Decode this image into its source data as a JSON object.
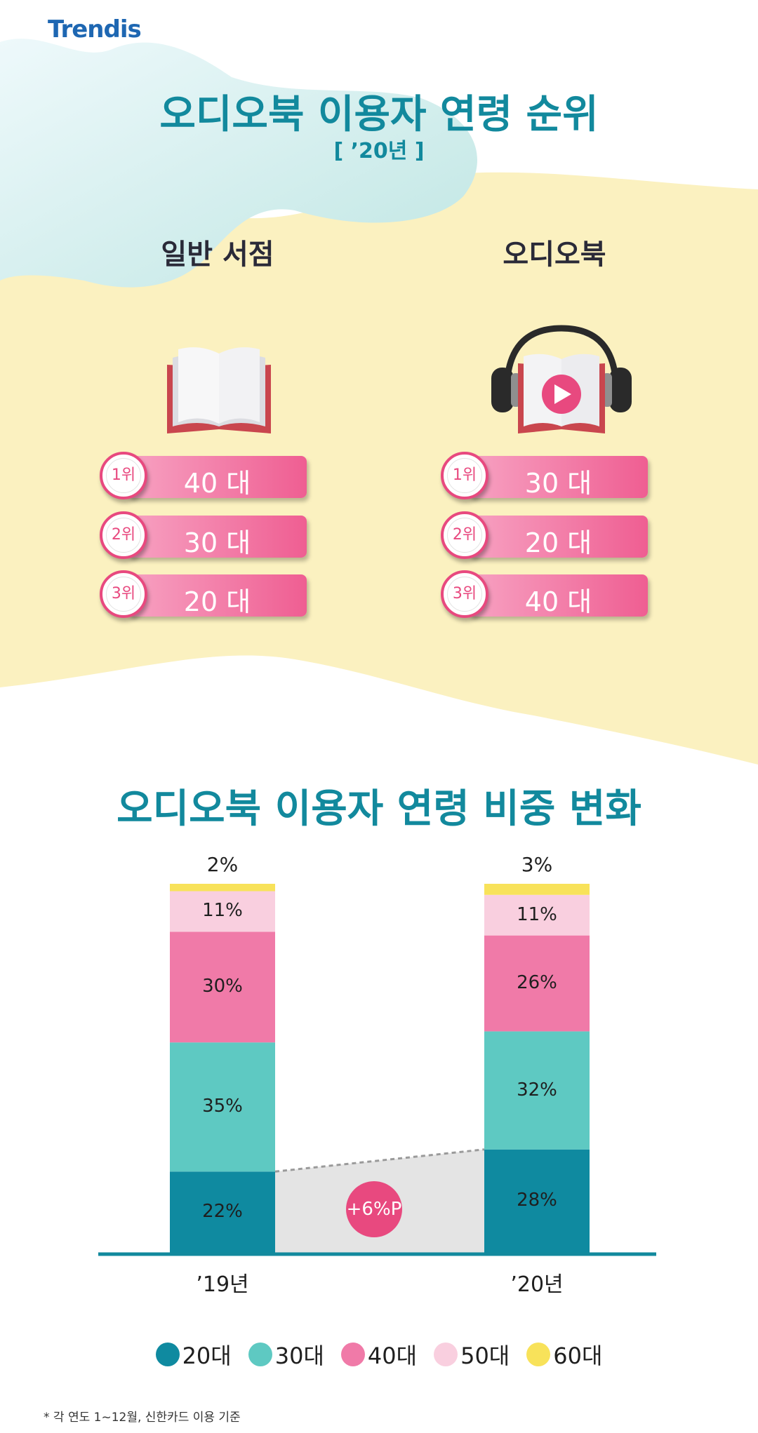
{
  "brand": "Trendis",
  "header": {
    "title": "오디오북 이용자 연령 순위",
    "subtitle": "[ ’20년 ]"
  },
  "ranking": {
    "left": {
      "title": "일반 서점",
      "icon": "book-icon",
      "items": [
        {
          "rank": "1위",
          "value": "40 대"
        },
        {
          "rank": "2위",
          "value": "30 대"
        },
        {
          "rank": "3위",
          "value": "20 대"
        }
      ]
    },
    "right": {
      "title": "오디오북",
      "icon": "audiobook-headphones-icon",
      "items": [
        {
          "rank": "1위",
          "value": "30 대"
        },
        {
          "rank": "2위",
          "value": "20 대"
        },
        {
          "rank": "3위",
          "value": "40 대"
        }
      ]
    }
  },
  "share_section": {
    "title": "오디오북 이용자 연령 비중 변화",
    "delta_label": "+6%P"
  },
  "chart_data": {
    "type": "bar",
    "stacked": true,
    "categories": [
      "’19년",
      "’20년"
    ],
    "series": [
      {
        "name": "20대",
        "values": [
          22,
          28
        ],
        "labels": [
          "22%",
          "28%"
        ],
        "color": "#0f8aa0"
      },
      {
        "name": "30대",
        "values": [
          35,
          32
        ],
        "labels": [
          "35%",
          "32%"
        ],
        "color": "#5ec9c2"
      },
      {
        "name": "40대",
        "values": [
          30,
          26
        ],
        "labels": [
          "30%",
          "26%"
        ],
        "color": "#f07aa8"
      },
      {
        "name": "50대",
        "values": [
          11,
          11
        ],
        "labels": [
          "11%",
          "11%"
        ],
        "color": "#f9cfdf"
      },
      {
        "name": "60대",
        "values": [
          2,
          3
        ],
        "labels": [
          "2%",
          "3%"
        ],
        "color": "#f8e25a"
      }
    ],
    "annotation": "+6%P",
    "legend": "bottom"
  },
  "footnote": "* 각 연도 1~12월, 신한카드 이용 기준",
  "colors": {
    "teal": "#12899d",
    "pink": "#e8497f",
    "cream": "#fbf1c0"
  }
}
